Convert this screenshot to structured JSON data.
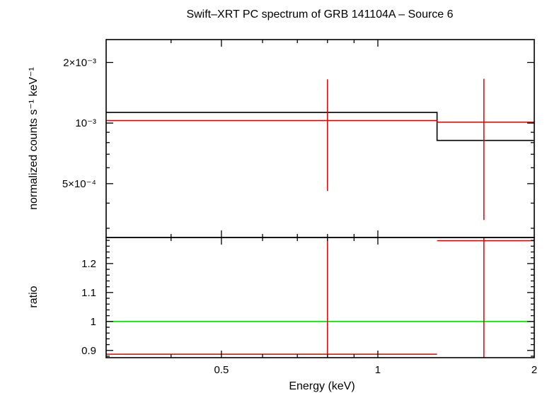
{
  "chart_data": [
    {
      "panel": "spectrum",
      "type": "line",
      "title": "Swift–XRT PC spectrum of GRB 141104A – Source 6",
      "xlabel": "Energy (keV)",
      "ylabel": "normalized counts s⁻¹ keV⁻¹",
      "xscale": "log",
      "yscale": "log",
      "xlim": [
        0.3,
        2
      ],
      "ylim": [
        0.00027,
        0.0026
      ],
      "yticks": [
        {
          "value": 0.0005,
          "label": "5×10⁻⁴"
        },
        {
          "value": 0.001,
          "label": "10⁻³"
        },
        {
          "value": 0.002,
          "label": "2×10⁻³"
        }
      ],
      "grid": false,
      "model": {
        "color": "#000000",
        "bins": [
          {
            "x0": 0.3,
            "x1": 1.3,
            "y": 0.00113
          },
          {
            "x0": 1.3,
            "x1": 2.0,
            "y": 0.00082
          }
        ]
      },
      "data_points": {
        "color": "#dd0000",
        "points": [
          {
            "x0": 0.3,
            "x1": 1.3,
            "xc": 0.8,
            "y": 0.00103,
            "ylo": 0.00046,
            "yhi": 0.00165
          },
          {
            "x0": 1.3,
            "x1": 2.0,
            "xc": 1.6,
            "y": 0.00101,
            "ylo": 0.00033,
            "yhi": 0.00166
          }
        ]
      }
    },
    {
      "panel": "ratio",
      "type": "line",
      "xlabel": "Energy (keV)",
      "ylabel": "ratio",
      "xscale": "log",
      "xlim": [
        0.3,
        2
      ],
      "ylim": [
        0.875,
        1.29
      ],
      "xticks": [
        {
          "value": 0.5,
          "label": "0.5"
        },
        {
          "value": 1,
          "label": "1"
        },
        {
          "value": 2,
          "label": "2"
        }
      ],
      "yticks": [
        {
          "value": 0.9,
          "label": "0.9"
        },
        {
          "value": 1.0,
          "label": "1"
        },
        {
          "value": 1.1,
          "label": "1.1"
        },
        {
          "value": 1.2,
          "label": "1.2"
        }
      ],
      "reference_line": {
        "y": 1.0,
        "color": "#00dd00"
      },
      "data_points": {
        "color": "#dd0000",
        "points": [
          {
            "x0": 0.3,
            "x1": 1.3,
            "xc": 0.8,
            "y": 0.887,
            "ylo": 0.6,
            "yhi": 1.6
          },
          {
            "x0": 1.3,
            "x1": 2.0,
            "xc": 1.6,
            "y": 1.279,
            "ylo": 0.6,
            "yhi": 1.6
          }
        ]
      }
    }
  ]
}
